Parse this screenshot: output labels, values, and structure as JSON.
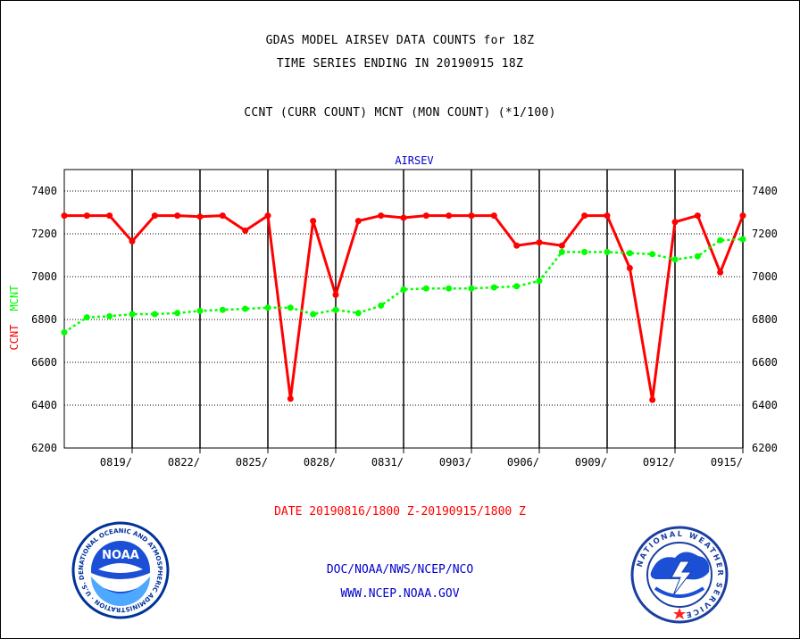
{
  "header": {
    "title_line1": "GDAS MODEL AIRSEV DATA COUNTS for 18Z",
    "title_line2": "TIME SERIES ENDING IN 20190915 18Z",
    "subtitle": "CCNT (CURR COUNT) MCNT (MON COUNT) (*1/100)"
  },
  "footer": {
    "date_range": "DATE 20190816/1800 Z-20190915/1800 Z",
    "org_path": "DOC/NOAA/NWS/NCEP/NCO",
    "website": "WWW.NCEP.NOAA.GOV"
  },
  "logos": {
    "noaa": "NOAA",
    "noaa_ring": "NATIONAL OCEANIC AND ATMOSPHERIC ADMINISTRATION · U.S. DEPARTMENT OF COMMERCE ·",
    "nws_ring": "NATIONAL WEATHER SERVICE"
  },
  "colors": {
    "ccnt": "#ff0000",
    "mcnt": "#00ff00",
    "plot_label": "#0000cc",
    "footer_blue": "#0000cc",
    "footer_red": "#ff0000"
  },
  "chart_data": {
    "type": "line",
    "title": "AIRSEV",
    "ylabel_ccnt": "CCNT",
    "ylabel_mcnt": "MCNT",
    "ylim": [
      6200,
      7500
    ],
    "yticks": [
      6200,
      6400,
      6600,
      6800,
      7000,
      7200,
      7400
    ],
    "xlim": [
      0,
      30
    ],
    "xtick_labels": [
      {
        "x": 3,
        "label": "0819/"
      },
      {
        "x": 6,
        "label": "0822/"
      },
      {
        "x": 9,
        "label": "0825/"
      },
      {
        "x": 12,
        "label": "0828/"
      },
      {
        "x": 15,
        "label": "0831/"
      },
      {
        "x": 18,
        "label": "0903/"
      },
      {
        "x": 21,
        "label": "0906/"
      },
      {
        "x": 24,
        "label": "0909/"
      },
      {
        "x": 27,
        "label": "0912/"
      },
      {
        "x": 30,
        "label": "0915/"
      }
    ],
    "series": [
      {
        "name": "CCNT",
        "color": "#ff0000",
        "values": [
          7285,
          7285,
          7285,
          7165,
          7285,
          7285,
          7280,
          7285,
          7215,
          7285,
          6430,
          7260,
          6915,
          7260,
          7285,
          7275,
          7285,
          7285,
          7285,
          7285,
          7145,
          7160,
          7145,
          7285,
          7285,
          7040,
          6425,
          7255,
          7285,
          7020,
          7285
        ]
      },
      {
        "name": "MCNT",
        "color": "#00ff00",
        "values": [
          6740,
          6810,
          6815,
          6825,
          6825,
          6830,
          6840,
          6845,
          6850,
          6855,
          6855,
          6825,
          6845,
          6830,
          6865,
          6940,
          6945,
          6945,
          6945,
          6950,
          6955,
          6980,
          7115,
          7115,
          7115,
          7110,
          7105,
          7080,
          7095,
          7170,
          7175
        ]
      }
    ]
  }
}
